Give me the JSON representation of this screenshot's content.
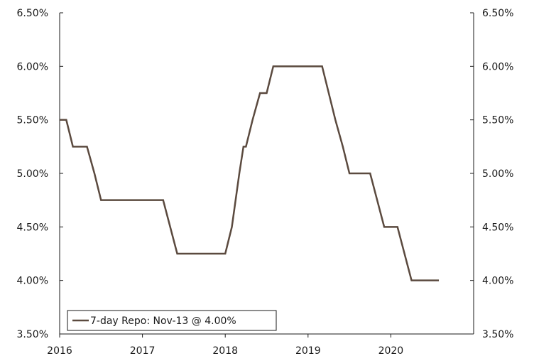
{
  "chart_data": {
    "type": "line",
    "title": "",
    "xlabel": "",
    "ylabel": "",
    "x_ticks": [
      "2016",
      "2017",
      "2018",
      "2019",
      "2020"
    ],
    "y_ticks_left": [
      "6.50%",
      "6.00%",
      "5.50%",
      "5.00%",
      "4.50%",
      "4.00%",
      "3.50%"
    ],
    "y_ticks_right": [
      "6.50%",
      "6.00%",
      "5.50%",
      "5.00%",
      "4.50%",
      "4.00%",
      "3.50%"
    ],
    "xlim": [
      2016.0,
      2021.0
    ],
    "ylim": [
      3.5,
      6.5
    ],
    "grid": false,
    "legend": {
      "position": "bottom-left",
      "label": "7-day Repo: Nov-13 @ 4.00%"
    },
    "colors": {
      "series": "#5b4a3f",
      "axis": "#1a1a1a"
    },
    "series": [
      {
        "name": "7-day Repo: Nov-13 @ 4.00%",
        "points": [
          [
            2016.0,
            5.5
          ],
          [
            2016.08,
            5.5
          ],
          [
            2016.16,
            5.25
          ],
          [
            2016.33,
            5.25
          ],
          [
            2016.42,
            5.0
          ],
          [
            2016.5,
            4.75
          ],
          [
            2017.25,
            4.75
          ],
          [
            2017.42,
            4.25
          ],
          [
            2018.0,
            4.25
          ],
          [
            2018.08,
            4.5
          ],
          [
            2018.17,
            5.0
          ],
          [
            2018.22,
            5.25
          ],
          [
            2018.25,
            5.25
          ],
          [
            2018.33,
            5.5
          ],
          [
            2018.42,
            5.75
          ],
          [
            2018.5,
            5.75
          ],
          [
            2018.58,
            6.0
          ],
          [
            2019.17,
            6.0
          ],
          [
            2019.25,
            5.75
          ],
          [
            2019.33,
            5.5
          ],
          [
            2019.42,
            5.25
          ],
          [
            2019.5,
            5.0
          ],
          [
            2019.75,
            5.0
          ],
          [
            2019.92,
            4.5
          ],
          [
            2020.08,
            4.5
          ],
          [
            2020.25,
            4.0
          ],
          [
            2020.58,
            4.0
          ]
        ]
      }
    ]
  }
}
